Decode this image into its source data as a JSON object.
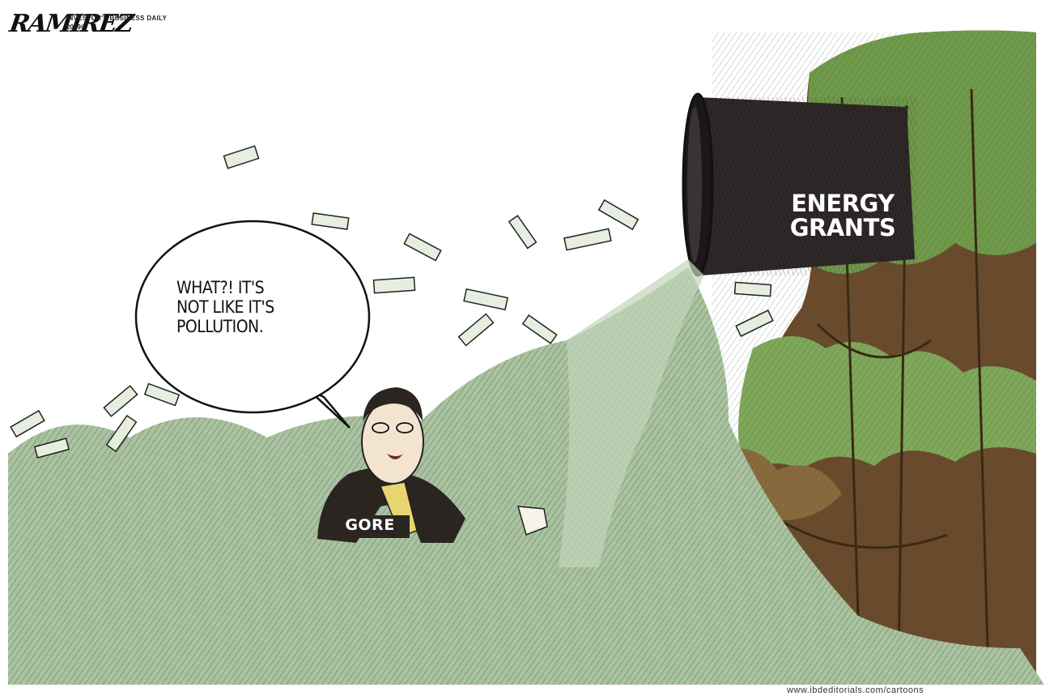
{
  "signature": {
    "artist": "RAMIREZ",
    "publisher": "INVESTOR'S BUSINESS DAILY",
    "year": "2009©"
  },
  "speech_bubble": {
    "lines": [
      "WHAT?! IT'S",
      "NOT LIKE IT'S",
      "POLLUTION."
    ]
  },
  "pipe_label": {
    "lines": [
      "ENERGY",
      "GRANTS"
    ]
  },
  "name_tag": "GORE",
  "footer_url": "www.ibdeditorials.com/cartoons",
  "colors": {
    "pipe": "#2a2424",
    "money": "#a9c3a0",
    "foliage": "#6f9a4a",
    "soil": "#6b4a2c",
    "suit": "#2b2522"
  }
}
